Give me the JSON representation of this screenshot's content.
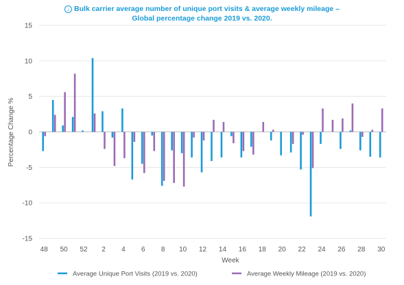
{
  "title_line1": "Bulk carrier average number of unique port visits & average weekly mileage –",
  "title_line2": "Global percentage change 2019 vs. 2020.",
  "icon": "download-circle-icon",
  "chart_data": {
    "type": "bar",
    "xlabel": "Week",
    "ylabel": "Percentage Change %",
    "ylim": [
      -15,
      15
    ],
    "yticks": [
      15,
      10,
      5,
      0,
      -5,
      -10,
      -15
    ],
    "grid": "horizontal",
    "legend_position": "bottom",
    "categories": [
      "48",
      "49",
      "50",
      "51",
      "52",
      "1",
      "2",
      "3",
      "4",
      "5",
      "6",
      "7",
      "8",
      "9",
      "10",
      "11",
      "12",
      "13",
      "14",
      "15",
      "16",
      "17",
      "18",
      "19",
      "20",
      "21",
      "22",
      "23",
      "24",
      "25",
      "26",
      "27",
      "28",
      "29",
      "30"
    ],
    "xtick_labels": [
      "48",
      "50",
      "52",
      "2",
      "4",
      "6",
      "8",
      "10",
      "12",
      "14",
      "16",
      "18",
      "20",
      "22",
      "24",
      "26",
      "28",
      "30"
    ],
    "series": [
      {
        "name": "Average Unique Port Visits (2019 vs. 2020)",
        "color": "#1a9bd7",
        "values": [
          -2.7,
          4.5,
          0.9,
          2.1,
          0.2,
          10.4,
          2.9,
          -0.8,
          3.3,
          -6.7,
          -4.5,
          -0.5,
          -7.6,
          -2.6,
          -3.0,
          -3.6,
          -5.7,
          -4.1,
          -3.6,
          -0.6,
          -3.6,
          -2.1,
          0,
          -1.2,
          -3.3,
          -2.9,
          -5.3,
          -11.9,
          -1.7,
          0,
          -2.4,
          0.2,
          -2.6,
          -3.5,
          -3.6
        ]
      },
      {
        "name": "Average Weekly Mileage (2019 vs. 2020)",
        "color": "#9b6bb5",
        "values": [
          -0.6,
          2.4,
          5.6,
          8.2,
          0,
          2.6,
          -2.4,
          -4.8,
          -3.7,
          -1.4,
          -5.8,
          -2.7,
          -6.9,
          -7.2,
          -7.7,
          -0.8,
          -1.2,
          1.7,
          1.4,
          -1.6,
          -2.7,
          -3.2,
          1.4,
          0.3,
          0,
          -1.7,
          -0.4,
          -5.1,
          3.3,
          1.7,
          1.9,
          4.0,
          -0.7,
          0.3,
          3.3
        ]
      }
    ]
  }
}
